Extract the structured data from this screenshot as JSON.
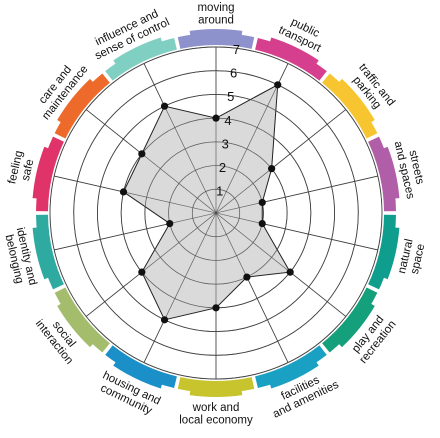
{
  "chart_data": {
    "type": "radar",
    "title": "",
    "rmin": 0,
    "rmax": 7,
    "ticks": [
      "1",
      "2",
      "3",
      "4",
      "5",
      "6",
      "7"
    ],
    "grid": true,
    "categories": [
      {
        "label": "moving around",
        "lines": [
          "moving",
          "around"
        ],
        "color": "#8e92cc"
      },
      {
        "label": "public transport",
        "lines": [
          "public",
          "transport"
        ],
        "color": "#d63f8e"
      },
      {
        "label": "traffic and parking",
        "lines": [
          "traffic and",
          "parking"
        ],
        "color": "#f7c52f"
      },
      {
        "label": "streets and spaces",
        "lines": [
          "streets",
          "and spaces"
        ],
        "color": "#b15ea8"
      },
      {
        "label": "natural space",
        "lines": [
          "natural",
          "space"
        ],
        "color": "#0f9e8e"
      },
      {
        "label": "play and recreation",
        "lines": [
          "play and",
          "recreation"
        ],
        "color": "#14a07a"
      },
      {
        "label": "facilities and amenities",
        "lines": [
          "facilities",
          "and amenities"
        ],
        "color": "#19a0c2"
      },
      {
        "label": "work and local economy",
        "lines": [
          "work and",
          "local economy"
        ],
        "color": "#c7c42e"
      },
      {
        "label": "housing and community",
        "lines": [
          "housing and",
          "community"
        ],
        "color": "#1b8fc8"
      },
      {
        "label": "social interaction",
        "lines": [
          "social",
          "interaction"
        ],
        "color": "#a3bd6d"
      },
      {
        "label": "identity and belonging",
        "lines": [
          "identity and",
          "belonging"
        ],
        "color": "#2eaaa0"
      },
      {
        "label": "feeling safe",
        "lines": [
          "feeling",
          "safe"
        ],
        "color": "#e0336a"
      },
      {
        "label": "care and maintenance",
        "lines": [
          "care and",
          "maintenance"
        ],
        "color": "#ee6a2a"
      },
      {
        "label": "influence and sense of control",
        "lines": [
          "influence and",
          "sense of control"
        ],
        "color": "#7fcfc2"
      }
    ],
    "series": [
      {
        "values": [
          4,
          6,
          3,
          2,
          2,
          4,
          3,
          4,
          5,
          4,
          2,
          4,
          4,
          5
        ]
      }
    ],
    "colors": {
      "fill": "#d3d3d3",
      "outline": "#222222",
      "point": "#111111",
      "grid": "#444444",
      "background": "#ffffff"
    }
  }
}
